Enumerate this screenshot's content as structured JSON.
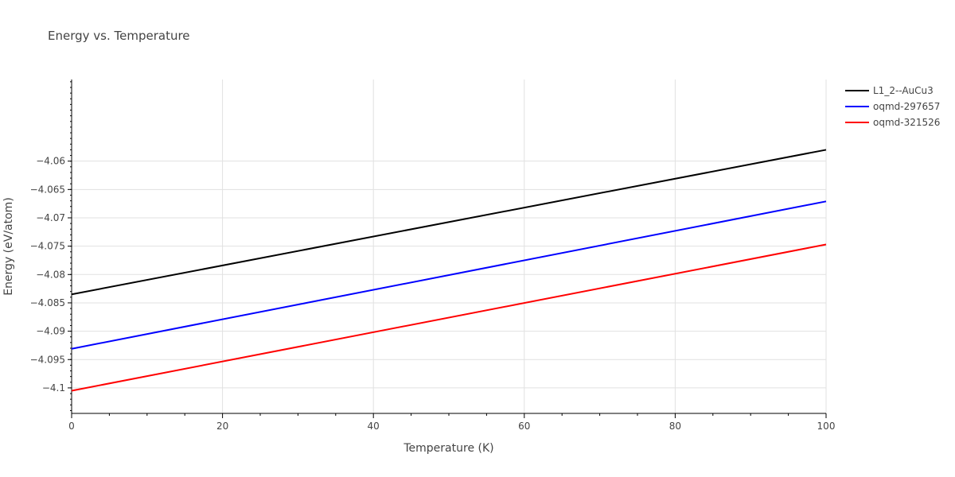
{
  "chart_data": {
    "type": "line",
    "title": "Energy vs. Temperature",
    "xlabel": "Temperature (K)",
    "ylabel": "Energy (eV/atom)",
    "xlim": [
      0,
      100
    ],
    "ylim": [
      -4.1045,
      -4.0456
    ],
    "x_ticks": [
      0,
      20,
      40,
      60,
      80,
      100
    ],
    "x_tick_labels": [
      "0",
      "20",
      "40",
      "60",
      "80",
      "100"
    ],
    "y_ticks": [
      -4.06,
      -4.065,
      -4.07,
      -4.075,
      -4.08,
      -4.085,
      -4.09,
      -4.095,
      -4.1
    ],
    "y_tick_labels": [
      "−4.06",
      "−4.065",
      "−4.07",
      "−4.075",
      "−4.08",
      "−4.085",
      "−4.09",
      "−4.095",
      "−4.1"
    ],
    "grid": true,
    "legend_position": "top-right",
    "series": [
      {
        "name": "L1_2--AuCu3",
        "color": "#000000",
        "x": [
          0,
          100
        ],
        "y": [
          -4.0835,
          -4.058
        ]
      },
      {
        "name": "oqmd-297657",
        "color": "#0000ff",
        "x": [
          0,
          100
        ],
        "y": [
          -4.0931,
          -4.0671
        ]
      },
      {
        "name": "oqmd-321526",
        "color": "#ff0000",
        "x": [
          0,
          100
        ],
        "y": [
          -4.1005,
          -4.0747
        ]
      }
    ]
  }
}
